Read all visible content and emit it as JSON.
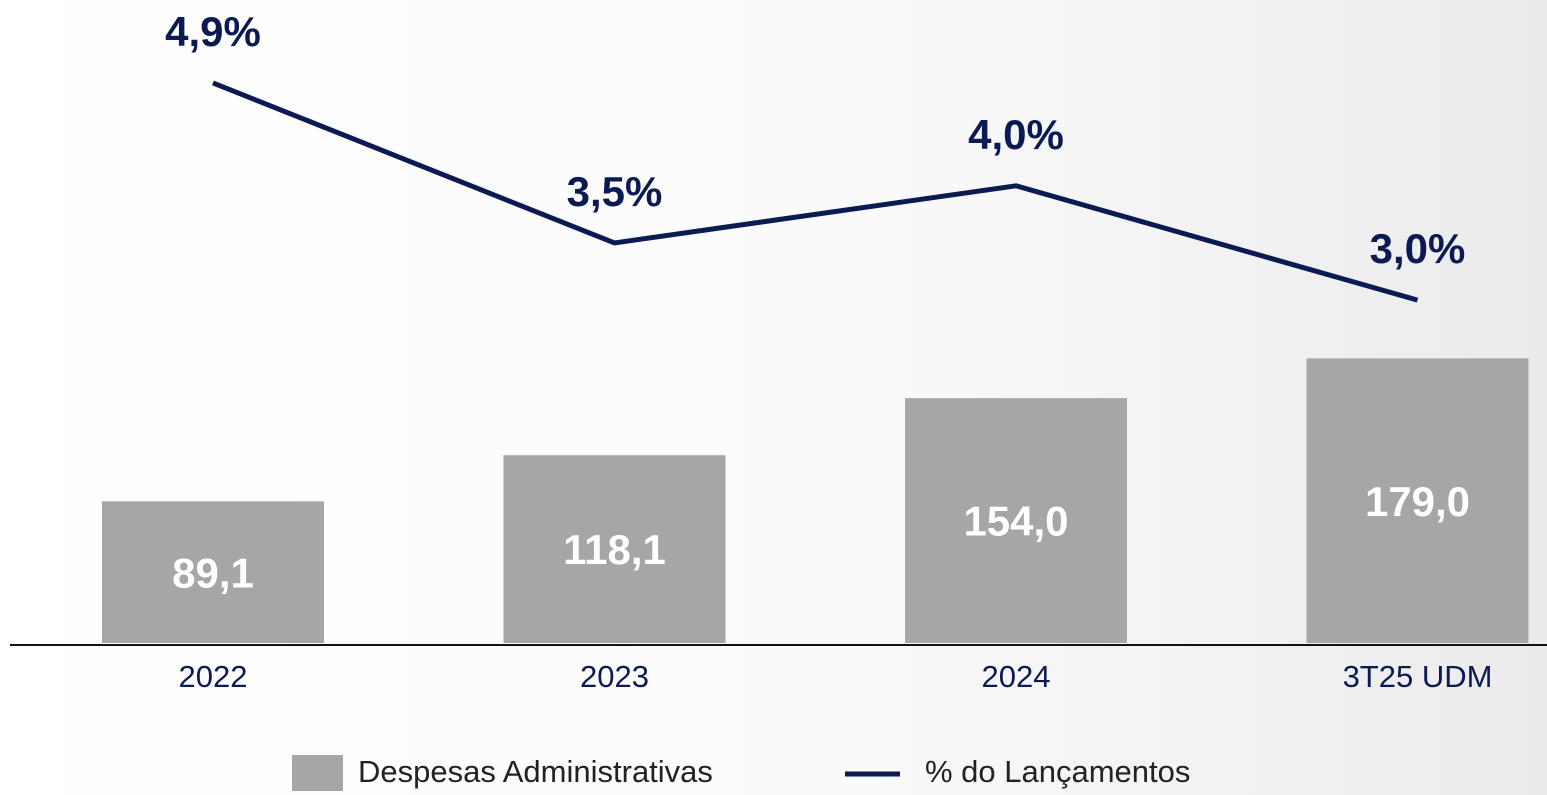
{
  "chart_data": {
    "type": "bar-line",
    "categories": [
      "2022",
      "2023",
      "2024",
      "3T25 UDM"
    ],
    "series": [
      {
        "name": "Despesas Administrativas",
        "type": "bar",
        "color": "#a6a6a6",
        "values": [
          89.1,
          118.1,
          154.0,
          179.0
        ],
        "value_labels": [
          "89,1",
          "118,1",
          "154,0",
          "179,0"
        ]
      },
      {
        "name": "% do Lançamentos",
        "type": "line",
        "axis": "y2",
        "color": "#0b1a52",
        "values": [
          4.9,
          3.5,
          4.0,
          3.0
        ],
        "value_labels": [
          "4,9%",
          "3,5%",
          "4,0%",
          "3,0%"
        ]
      }
    ]
  }
}
